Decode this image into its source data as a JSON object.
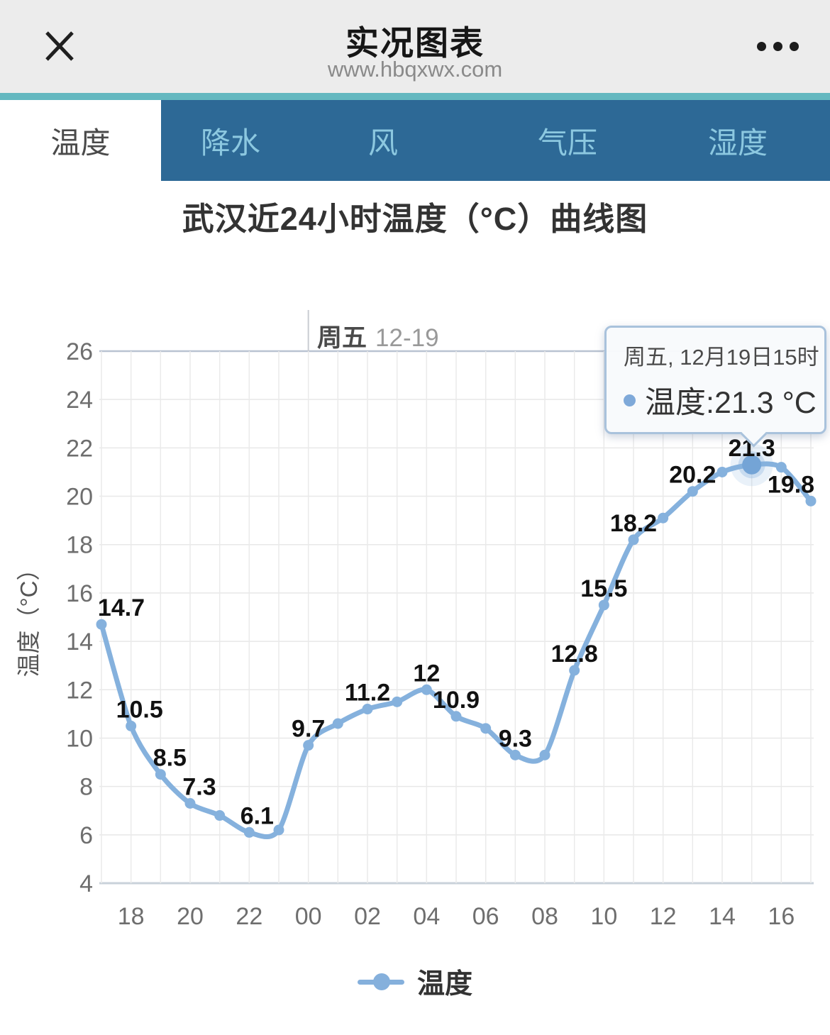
{
  "header": {
    "title": "实况图表",
    "url": "www.hbqxwx.com"
  },
  "tabs": [
    {
      "label": "温度",
      "active": true
    },
    {
      "label": "降水",
      "active": false
    },
    {
      "label": "风",
      "active": false
    },
    {
      "label": "气压",
      "active": false
    },
    {
      "label": "湿度",
      "active": false
    }
  ],
  "day_marker": {
    "day": "周五",
    "date": "12-19"
  },
  "tooltip": {
    "datetime": "周五, 12月19日15时",
    "series_label": "温度:21.3 °C"
  },
  "chart_data": {
    "type": "line",
    "title": "武汉近24小时温度（°C）曲线图",
    "xlabel": "",
    "ylabel": "温度（°C）",
    "ylim": [
      4,
      26
    ],
    "ytick_interval": 2,
    "yticks": [
      4,
      6,
      8,
      10,
      12,
      14,
      16,
      18,
      20,
      22,
      24,
      26
    ],
    "x": [
      "17",
      "18",
      "19",
      "20",
      "21",
      "22",
      "23",
      "00",
      "01",
      "02",
      "03",
      "04",
      "05",
      "06",
      "07",
      "08",
      "09",
      "10",
      "11",
      "12",
      "13",
      "14",
      "15",
      "16",
      "17"
    ],
    "xtick_labels": [
      "18",
      "20",
      "22",
      "00",
      "02",
      "04",
      "06",
      "08",
      "10",
      "12",
      "14",
      "16"
    ],
    "grid": true,
    "legend_position": "bottom",
    "series": [
      {
        "name": "温度",
        "values": [
          14.7,
          10.5,
          8.5,
          7.3,
          6.8,
          6.1,
          6.2,
          9.7,
          10.6,
          11.2,
          11.5,
          12,
          10.9,
          10.4,
          9.3,
          9.3,
          12.8,
          15.5,
          18.2,
          19.1,
          20.2,
          21.0,
          21.3,
          21.2,
          19.8
        ]
      }
    ],
    "point_labels": {
      "0": "14.7",
      "1": "10.5",
      "2": "8.5",
      "3": "7.3",
      "5": "6.1",
      "7": "9.7",
      "9": "11.2",
      "11": "12",
      "12": "10.9",
      "14": "9.3",
      "16": "12.8",
      "17": "15.5",
      "18": "18.2",
      "20": "20.2",
      "22": "21.3",
      "24": "19.8"
    },
    "highlight_index": 22,
    "day_marker_index": 7,
    "colors": {
      "line": "#85b1dd",
      "point_label": "#111111",
      "axis_text": "#6e6e6e",
      "grid_line": "#e8e8e8",
      "axis_line_bottom": "#c9d2da",
      "axis_line_top": "#b9c3d1",
      "day_marker_line": "#c9ccd2",
      "tab_bar_bg": "#2d6996",
      "tab_text": "#8cc8e0",
      "accent_strip": "#64b8c0",
      "tooltip_border": "#a9c2dc"
    }
  }
}
